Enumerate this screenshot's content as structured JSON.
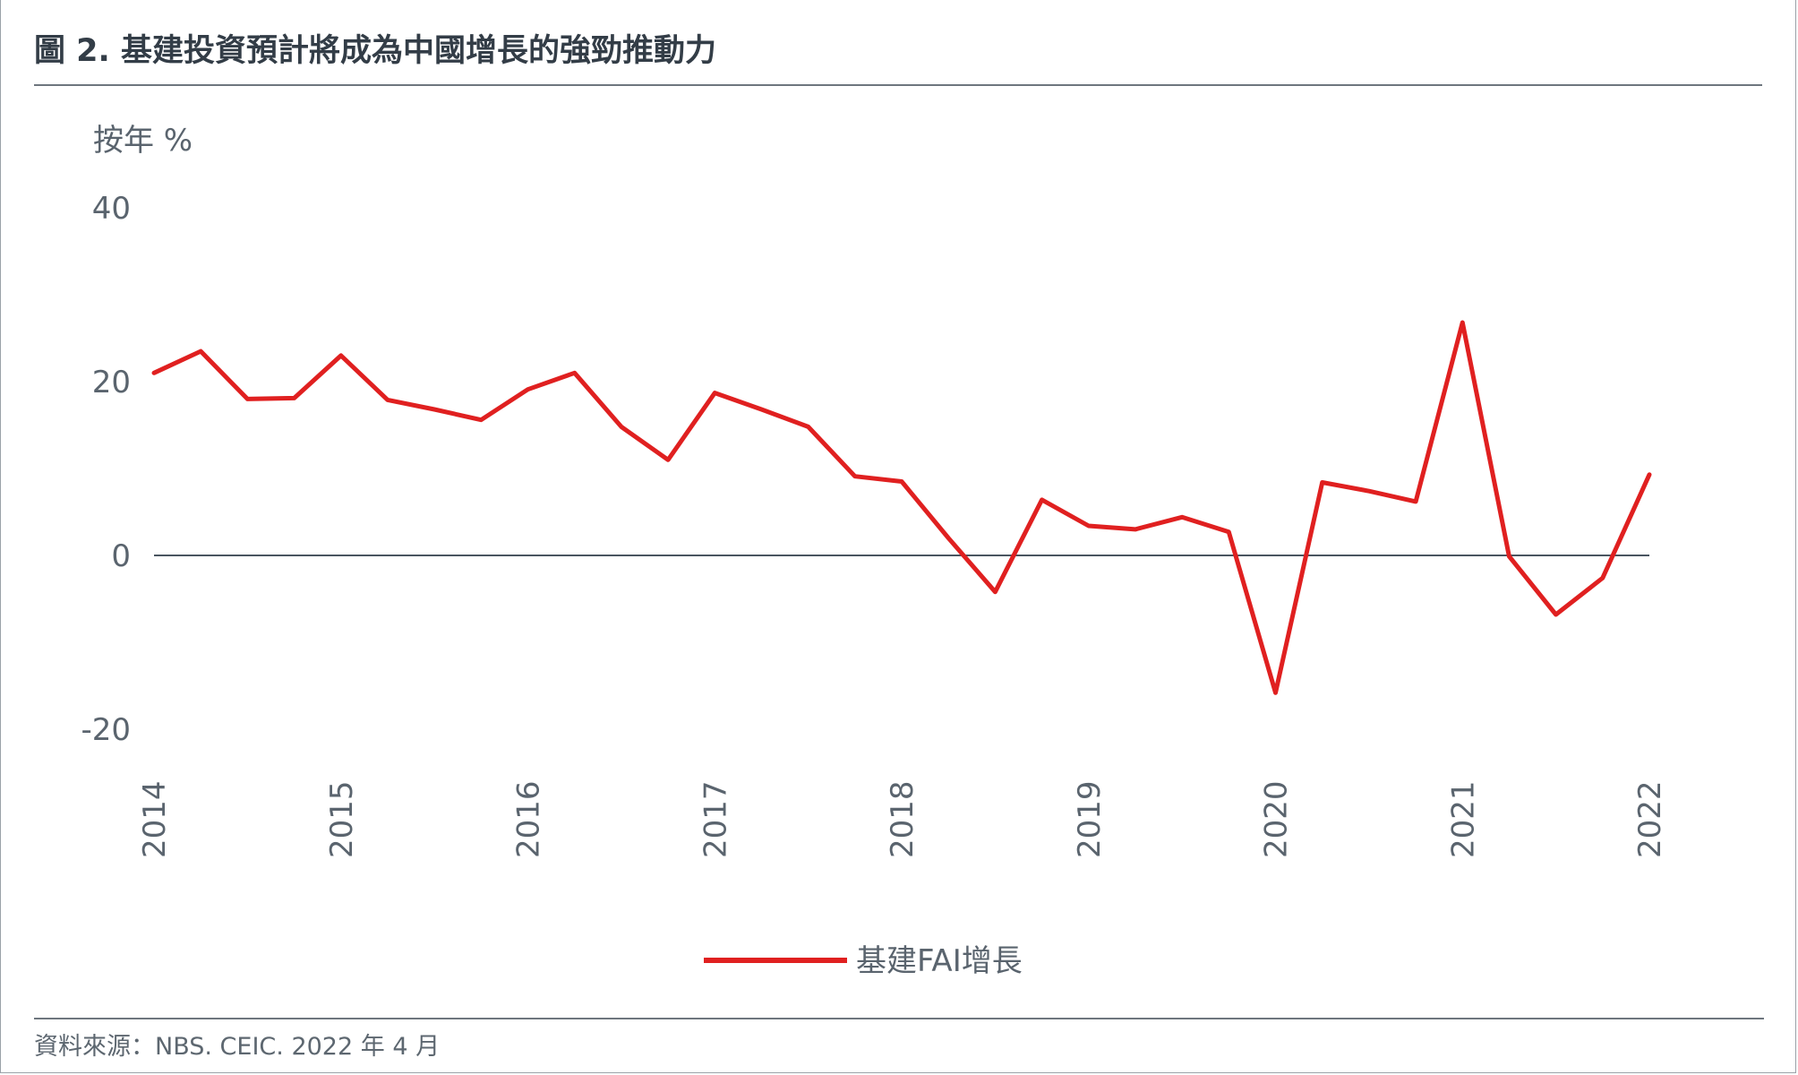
{
  "header": {
    "title": "圖 2. 基建投資預計將成為中國增長的強勁推動力"
  },
  "footer": {
    "source": "資料來源：NBS. CEIC. 2022 年 4 月"
  },
  "colors": {
    "series": "#e02020",
    "zero_line": "#4a5560",
    "text": "#5a646e"
  },
  "chart_data": {
    "type": "line",
    "title": "",
    "ylabel": "按年 %",
    "xlabel": "",
    "ylim": [
      -20,
      40
    ],
    "yticks": [
      {
        "value": 40,
        "label": "40"
      },
      {
        "value": 20,
        "label": "20"
      },
      {
        "value": 0,
        "label": "0"
      },
      {
        "value": -20,
        "label": "-20"
      }
    ],
    "xlim": [
      2014,
      2022
    ],
    "xticks": [
      {
        "value": 2014,
        "label": "2014"
      },
      {
        "value": 2015,
        "label": "2015"
      },
      {
        "value": 2016,
        "label": "2016"
      },
      {
        "value": 2017,
        "label": "2017"
      },
      {
        "value": 2018,
        "label": "2018"
      },
      {
        "value": 2019,
        "label": "2019"
      },
      {
        "value": 2020,
        "label": "2020"
      },
      {
        "value": 2021,
        "label": "2021"
      },
      {
        "value": 2022,
        "label": "2022"
      }
    ],
    "grid": false,
    "legend_position": "bottom-center",
    "series": [
      {
        "name": "基建FAI增長",
        "color": "#e02020",
        "points": [
          {
            "x": 2014.0,
            "y": 21.0
          },
          {
            "x": 2014.25,
            "y": 23.5
          },
          {
            "x": 2014.5,
            "y": 18.0
          },
          {
            "x": 2014.75,
            "y": 18.1
          },
          {
            "x": 2015.0,
            "y": 23.0
          },
          {
            "x": 2015.25,
            "y": 17.9
          },
          {
            "x": 2015.5,
            "y": 16.8
          },
          {
            "x": 2015.75,
            "y": 15.6
          },
          {
            "x": 2016.0,
            "y": 19.1
          },
          {
            "x": 2016.25,
            "y": 21.0
          },
          {
            "x": 2016.5,
            "y": 14.8
          },
          {
            "x": 2016.75,
            "y": 11.0
          },
          {
            "x": 2017.0,
            "y": 18.7
          },
          {
            "x": 2017.25,
            "y": 16.8
          },
          {
            "x": 2017.5,
            "y": 14.8
          },
          {
            "x": 2017.75,
            "y": 9.1
          },
          {
            "x": 2018.0,
            "y": 8.5
          },
          {
            "x": 2018.25,
            "y": 2.0
          },
          {
            "x": 2018.5,
            "y": -4.2
          },
          {
            "x": 2018.75,
            "y": 6.4
          },
          {
            "x": 2019.0,
            "y": 3.4
          },
          {
            "x": 2019.25,
            "y": 3.0
          },
          {
            "x": 2019.5,
            "y": 4.4
          },
          {
            "x": 2019.75,
            "y": 2.7
          },
          {
            "x": 2020.0,
            "y": -15.8
          },
          {
            "x": 2020.25,
            "y": 8.4
          },
          {
            "x": 2020.5,
            "y": 7.4
          },
          {
            "x": 2020.75,
            "y": 6.2
          },
          {
            "x": 2021.0,
            "y": 26.8
          },
          {
            "x": 2021.25,
            "y": -0.1
          },
          {
            "x": 2021.5,
            "y": -6.8
          },
          {
            "x": 2021.75,
            "y": -2.6
          },
          {
            "x": 2022.0,
            "y": 9.3
          }
        ]
      }
    ]
  }
}
